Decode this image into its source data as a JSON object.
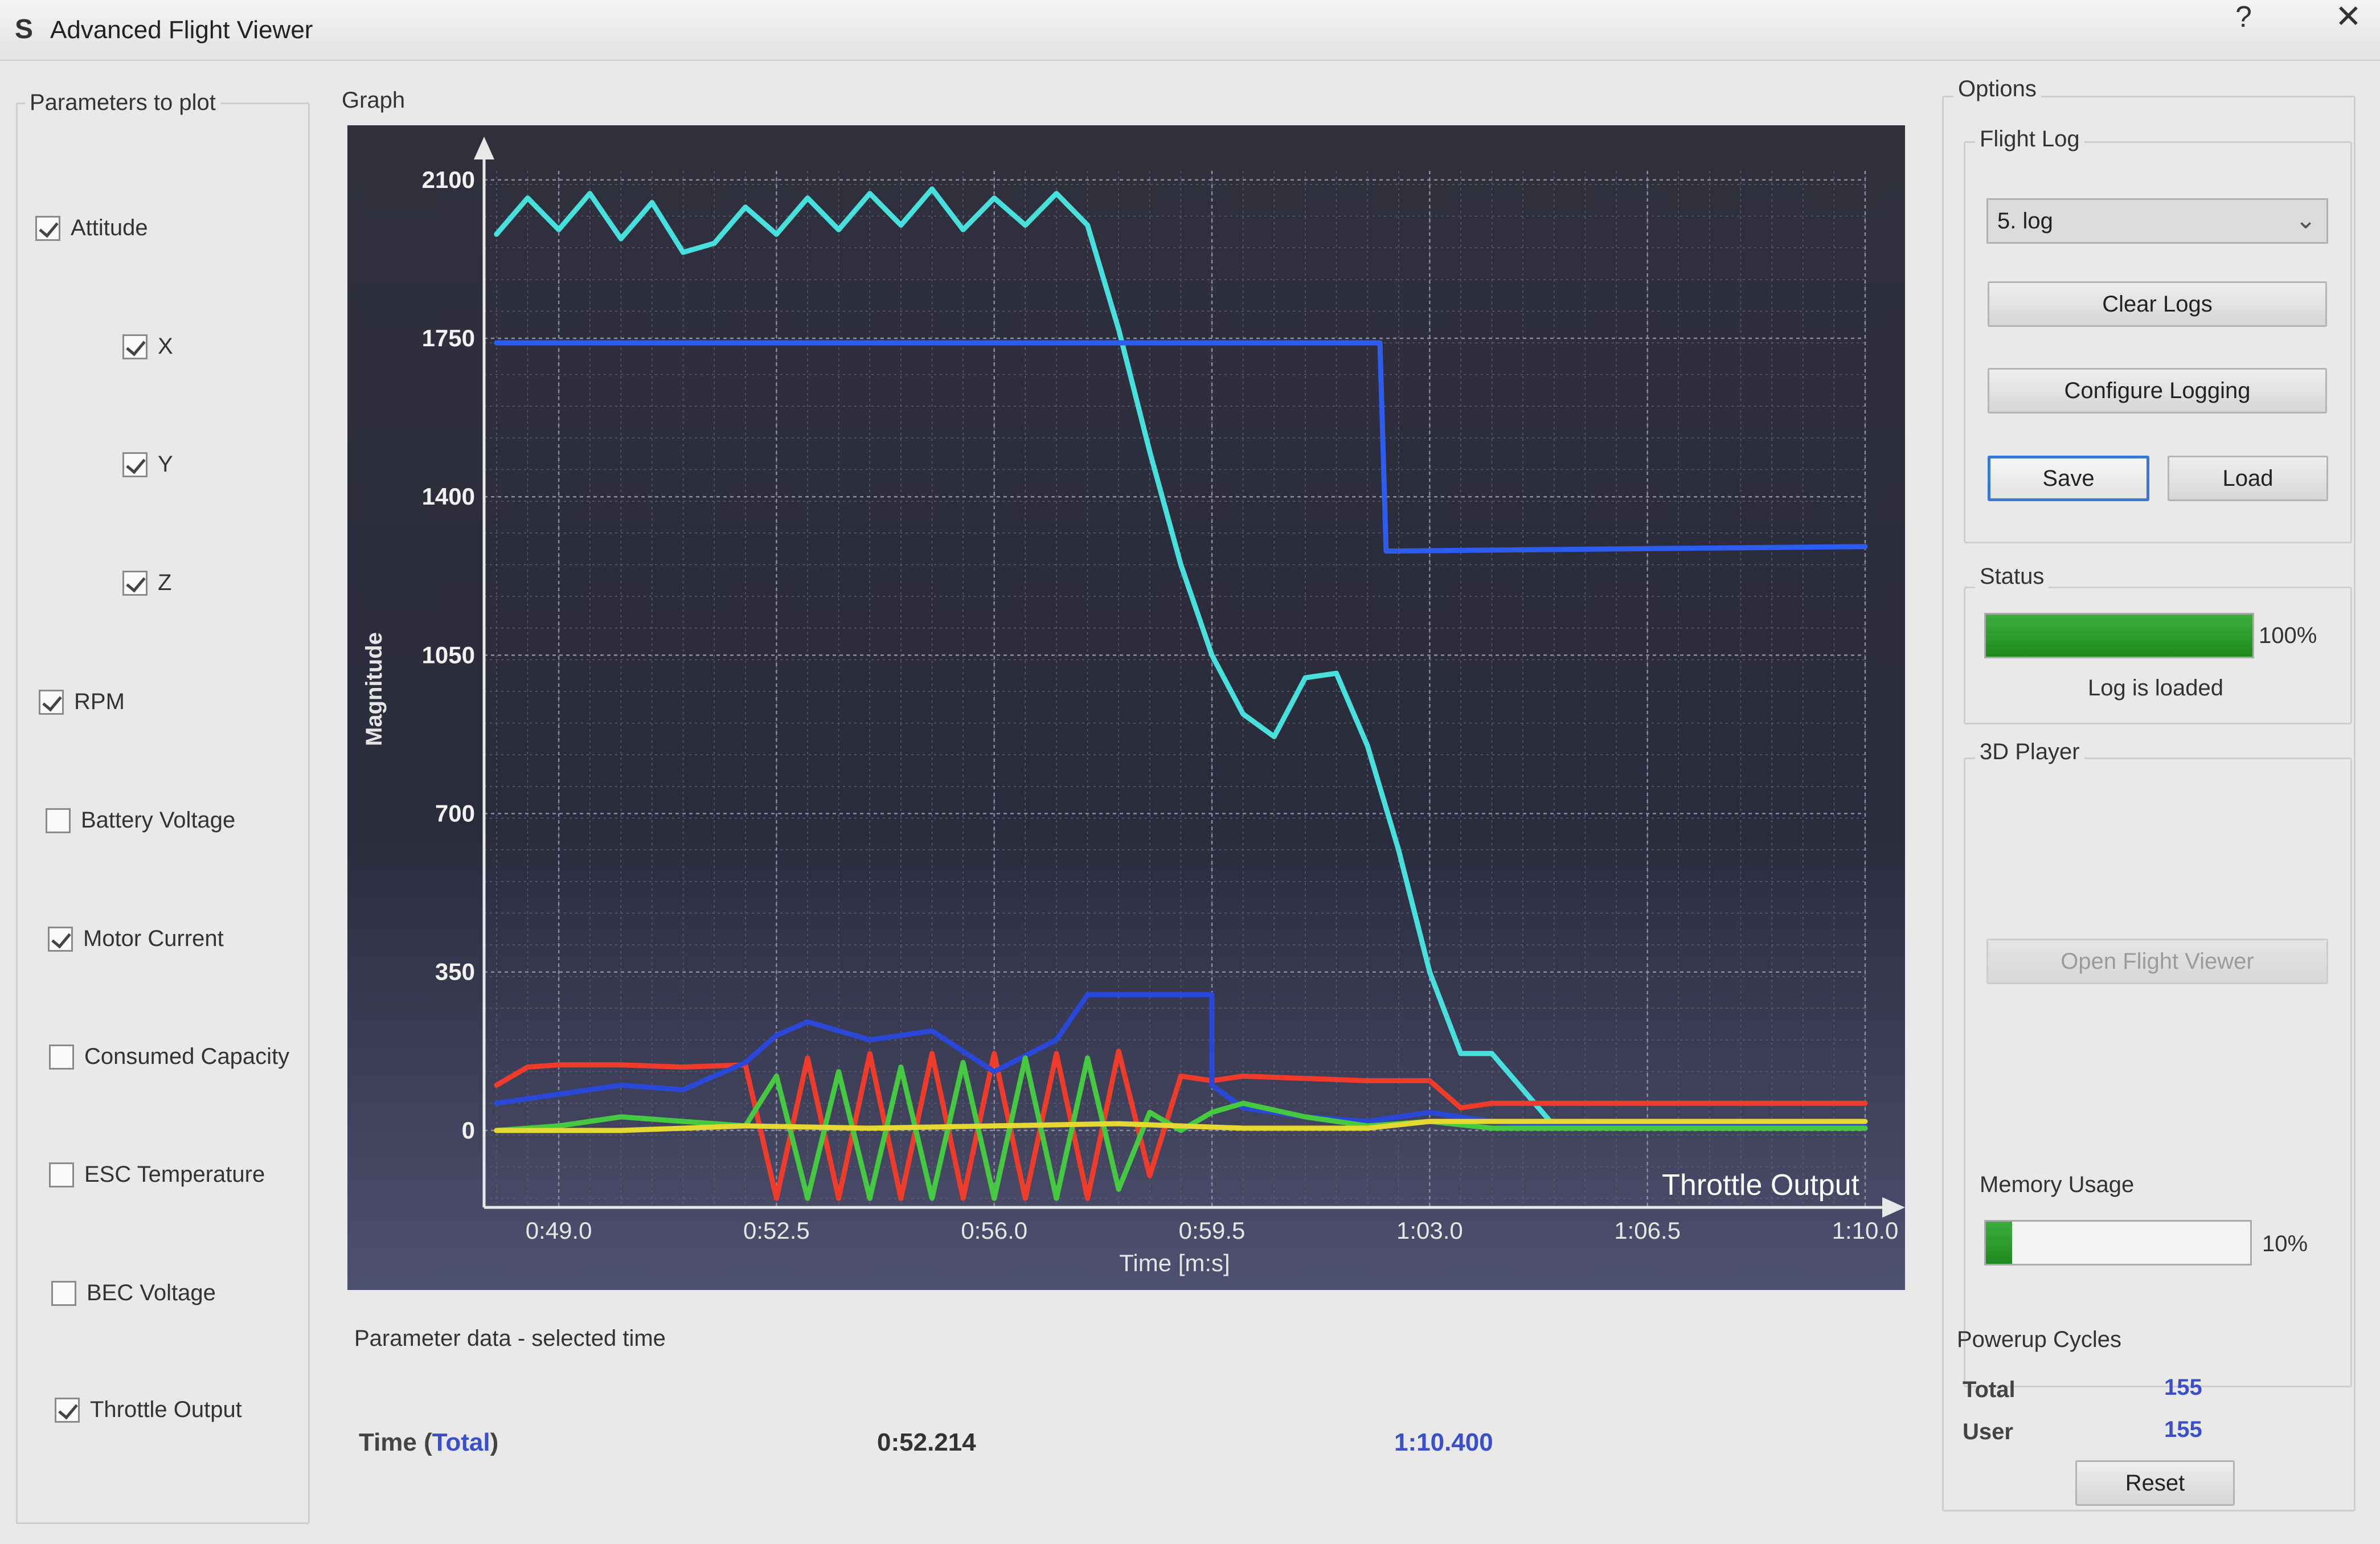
{
  "window": {
    "title": "Advanced Flight Viewer",
    "help": "?",
    "close": "✕",
    "app_icon": "S"
  },
  "parameters": {
    "title": "Parameters to plot",
    "items": [
      {
        "label": "Attitude",
        "checked": true
      },
      {
        "label": "X",
        "checked": true
      },
      {
        "label": "Y",
        "checked": true
      },
      {
        "label": "Z",
        "checked": true
      },
      {
        "label": "RPM",
        "checked": true
      },
      {
        "label": "Battery Voltage",
        "checked": false
      },
      {
        "label": "Motor Current",
        "checked": true
      },
      {
        "label": "Consumed Capacity",
        "checked": false
      },
      {
        "label": "ESC Temperature",
        "checked": false
      },
      {
        "label": "BEC Voltage",
        "checked": false
      },
      {
        "label": "Throttle Output",
        "checked": true
      }
    ]
  },
  "graph": {
    "title": "Graph"
  },
  "chart_data": {
    "type": "line",
    "xlabel": "Time [m:s]",
    "ylabel": "Magnitude",
    "annotation": "Throttle Output",
    "x_ticks": [
      "0:49.0",
      "0:52.5",
      "0:56.0",
      "0:59.5",
      "1:03.0",
      "1:06.5",
      "1:10.0"
    ],
    "y_ticks": [
      "0",
      "350",
      "700",
      "1050",
      "1400",
      "1750",
      "2100"
    ],
    "xlim": [
      47.8,
      70.0
    ],
    "ylim": [
      -170,
      2120
    ],
    "grid": true,
    "series": [
      {
        "color": "#47e0dc",
        "x": [
          48.0,
          48.5,
          49.0,
          49.5,
          50.0,
          50.5,
          51.0,
          51.5,
          52.0,
          52.5,
          53.0,
          53.5,
          54.0,
          54.5,
          55.0,
          55.5,
          56.0,
          56.5,
          57.0,
          57.5,
          58.0,
          58.5,
          59.0,
          59.5,
          60.0,
          60.5,
          61.0,
          61.5,
          62.0,
          62.5,
          63.0,
          63.5,
          64.0,
          65.0,
          66.0,
          67.0,
          68.0,
          69.0,
          70.0
        ],
        "y": [
          1980,
          2060,
          1990,
          2070,
          1970,
          2050,
          1940,
          1960,
          2040,
          1980,
          2060,
          1990,
          2070,
          2000,
          2080,
          1990,
          2060,
          2000,
          2070,
          2000,
          1770,
          1500,
          1250,
          1050,
          920,
          870,
          1000,
          1010,
          850,
          620,
          350,
          170,
          170,
          10,
          5,
          5,
          5,
          5,
          5
        ]
      },
      {
        "color": "#2c5cf0",
        "x": [
          48.0,
          62.2,
          62.2,
          62.3,
          70.0
        ],
        "y": [
          1740,
          1740,
          1740,
          1280,
          1290
        ]
      },
      {
        "color": "#ee3b2a",
        "x": [
          48.0,
          48.5,
          49.0,
          50.0,
          51.0,
          52.0,
          52.5,
          53.0,
          53.5,
          54.0,
          54.5,
          55.0,
          55.5,
          56.0,
          56.5,
          57.0,
          57.5,
          58.0,
          58.5,
          59.0,
          59.5,
          60.0,
          61.0,
          62.0,
          63.0,
          63.5,
          64.0,
          65.0,
          66.0,
          67.0,
          68.0,
          69.0,
          70.0
        ],
        "y": [
          100,
          140,
          145,
          145,
          140,
          145,
          -150,
          160,
          -150,
          170,
          -150,
          170,
          -150,
          170,
          -150,
          170,
          -150,
          175,
          -100,
          120,
          110,
          120,
          115,
          110,
          110,
          50,
          60,
          60,
          60,
          60,
          60,
          60,
          60
        ]
      },
      {
        "color": "#2a48d8",
        "x": [
          48.0,
          49.0,
          50.0,
          51.0,
          52.0,
          52.5,
          53.0,
          54.0,
          55.0,
          56.0,
          57.0,
          57.5,
          58.0,
          59.0,
          59.5,
          59.5,
          60.0,
          61.0,
          62.0,
          63.0,
          64.0,
          65.0,
          70.0
        ],
        "y": [
          60,
          80,
          100,
          90,
          150,
          210,
          240,
          200,
          220,
          130,
          200,
          300,
          300,
          300,
          300,
          100,
          50,
          30,
          20,
          40,
          20,
          10,
          10
        ]
      },
      {
        "color": "#44c940",
        "x": [
          48.0,
          49.0,
          50.0,
          51.0,
          52.0,
          52.5,
          53.0,
          53.5,
          54.0,
          54.5,
          55.0,
          55.5,
          56.0,
          56.5,
          57.0,
          57.5,
          58.0,
          58.5,
          59.0,
          59.5,
          60.0,
          61.0,
          62.0,
          63.0,
          64.0,
          70.0
        ],
        "y": [
          0,
          10,
          30,
          20,
          10,
          120,
          -150,
          130,
          -150,
          140,
          -150,
          150,
          -150,
          160,
          -150,
          160,
          -130,
          40,
          0,
          40,
          60,
          30,
          10,
          20,
          5,
          5
        ]
      },
      {
        "color": "#e6d832",
        "x": [
          48.0,
          50.0,
          52.0,
          54.0,
          56.0,
          58.0,
          60.0,
          62.0,
          63.0,
          64.0,
          66.0,
          70.0
        ],
        "y": [
          0,
          0,
          10,
          5,
          10,
          15,
          5,
          5,
          20,
          20,
          20,
          20
        ]
      }
    ]
  },
  "options": {
    "title": "Options",
    "flight_log": {
      "title": "Flight Log",
      "selected": "5. log",
      "clear": "Clear Logs",
      "configure": "Configure Logging",
      "save": "Save",
      "load": "Load"
    },
    "status": {
      "title": "Status",
      "progress": 100,
      "percent_label": "100%",
      "message": "Log is loaded"
    },
    "player": {
      "title": "3D Player",
      "open": "Open Flight Viewer"
    },
    "memory": {
      "title": "Memory Usage",
      "usage": 10,
      "percent_label": "10%"
    },
    "powerup": {
      "title": "Powerup Cycles",
      "total_label": "Total",
      "total": "155",
      "user_label": "User",
      "user": "155",
      "reset": "Reset"
    }
  },
  "parameter_data": {
    "title": "Parameter data - selected time",
    "label_prefix": "Time (",
    "label_total": "Total",
    "label_suffix": ")",
    "selected": "0:52.214",
    "total": "1:10.400"
  },
  "colors": {
    "accent": "#3a78d6",
    "progress": "#2a9a2a",
    "value_blue": "#3a4fc9"
  }
}
